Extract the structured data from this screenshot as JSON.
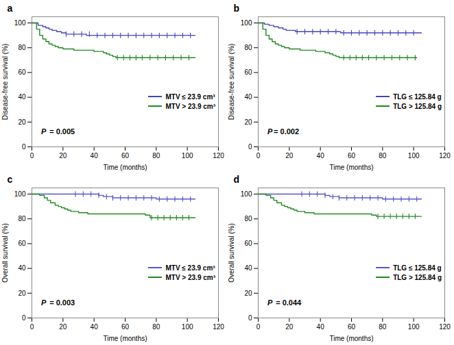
{
  "chart_data": [
    {
      "type": "line",
      "title": "a",
      "xlabel": "Time (months)",
      "ylabel": "Disease-free survival (%)",
      "annotations": [
        "P",
        " = 0.005"
      ],
      "series": [
        {
          "name": "MTV ≤ 23.9 cm³",
          "color": "#4444bb",
          "x": [
            0,
            4,
            7,
            9,
            11,
            13,
            16,
            19,
            22,
            27,
            35,
            40,
            45,
            50,
            55,
            60,
            65,
            70,
            75,
            80,
            85,
            90,
            95,
            100,
            105
          ],
          "values": [
            100,
            98,
            97,
            96,
            95,
            94,
            93,
            92,
            91,
            91,
            90,
            90,
            90,
            90,
            90,
            90,
            90,
            90,
            90,
            90,
            90,
            90,
            90,
            90,
            90
          ],
          "censor_x": [
            22,
            27,
            32,
            37,
            42,
            47,
            52,
            57,
            62,
            67,
            72,
            77,
            82,
            87,
            92,
            97,
            102
          ],
          "censor_y": [
            91,
            91,
            91,
            91,
            90,
            90,
            90,
            90,
            90,
            90,
            90,
            90,
            90,
            90,
            90,
            90,
            90
          ]
        },
        {
          "name": "MTV > 23.9 cm³",
          "color": "#228822",
          "x": [
            0,
            3,
            5,
            7,
            9,
            11,
            13,
            15,
            17,
            20,
            23,
            27,
            32,
            37,
            40,
            43,
            46,
            48,
            50,
            52,
            54,
            60,
            65,
            70,
            75,
            80,
            85,
            90,
            95,
            100,
            105
          ],
          "values": [
            100,
            95,
            90,
            87,
            85,
            83,
            82,
            81,
            80,
            79,
            79,
            78,
            78,
            78,
            77,
            77,
            76,
            75,
            74,
            73,
            72,
            72,
            72,
            72,
            72,
            72,
            72,
            72,
            72,
            72,
            72
          ],
          "censor_x": [
            55,
            59,
            63,
            67,
            71,
            76,
            81,
            86,
            91,
            96,
            101
          ],
          "censor_y": [
            72,
            72,
            72,
            72,
            72,
            72,
            72,
            72,
            72,
            72,
            72
          ]
        }
      ],
      "xlim": [
        0,
        120
      ],
      "ylim": [
        0,
        105
      ],
      "xticks": [
        0,
        20,
        40,
        60,
        80,
        100,
        120
      ],
      "yticks": [
        0,
        20,
        40,
        60,
        80,
        100
      ],
      "legend": "lower right",
      "grid": false
    },
    {
      "type": "line",
      "title": "b",
      "xlabel": "Time (months)",
      "ylabel": "Disease-free survival (%)",
      "annotations": [
        "P",
        "= 0.002"
      ],
      "series": [
        {
          "name": "TLG ≤ 125.84 g",
          "color": "#4444bb",
          "x": [
            0,
            4,
            7,
            10,
            13,
            16,
            18,
            21,
            24,
            28,
            33,
            38,
            43,
            48,
            53,
            60,
            65,
            70,
            75,
            80,
            85,
            90,
            95,
            100,
            105
          ],
          "values": [
            100,
            99,
            98,
            97,
            96,
            95,
            94,
            94,
            93,
            93,
            93,
            93,
            93,
            93,
            92,
            92,
            92,
            92,
            92,
            92,
            92,
            92,
            92,
            92,
            92
          ],
          "censor_x": [
            25,
            30,
            35,
            40,
            45,
            50,
            55,
            60,
            65,
            70,
            75,
            80,
            85,
            90,
            95,
            100
          ],
          "censor_y": [
            93,
            93,
            93,
            93,
            93,
            93,
            92,
            92,
            92,
            92,
            92,
            92,
            92,
            92,
            92,
            92
          ]
        },
        {
          "name": "TLG > 125.84 g",
          "color": "#228822",
          "x": [
            0,
            3,
            5,
            7,
            9,
            11,
            13,
            15,
            17,
            20,
            23,
            27,
            32,
            37,
            40,
            43,
            46,
            48,
            50,
            52,
            58,
            62,
            66,
            70,
            74,
            78,
            82,
            86,
            90,
            94,
            98,
            102
          ],
          "values": [
            100,
            95,
            90,
            87,
            85,
            83,
            82,
            81,
            80,
            79,
            79,
            78,
            78,
            77,
            77,
            76,
            75,
            74,
            73,
            72,
            72,
            72,
            72,
            72,
            72,
            72,
            72,
            72,
            72,
            72,
            72,
            72
          ],
          "censor_x": [
            55,
            59,
            63,
            67,
            71,
            76,
            81,
            86,
            91,
            96,
            101
          ],
          "censor_y": [
            72,
            72,
            72,
            72,
            72,
            72,
            72,
            72,
            72,
            72,
            72
          ]
        }
      ],
      "xlim": [
        0,
        120
      ],
      "ylim": [
        0,
        105
      ],
      "xticks": [
        0,
        20,
        40,
        60,
        80,
        100,
        120
      ],
      "yticks": [
        0,
        20,
        40,
        60,
        80,
        100
      ],
      "legend": "lower right",
      "grid": false
    },
    {
      "type": "line",
      "title": "c",
      "xlabel": "Time (months)",
      "ylabel": "Overall survival (%)",
      "annotations": [
        "P",
        " = 0.003"
      ],
      "series": [
        {
          "name": "MTV ≤ 23.9 cm³",
          "color": "#5555cc",
          "x": [
            0,
            10,
            15,
            20,
            25,
            30,
            35,
            40,
            43,
            46,
            49,
            52,
            55,
            60,
            65,
            70,
            75,
            80,
            85,
            90,
            95,
            100,
            105
          ],
          "values": [
            100,
            100,
            100,
            100,
            100,
            100,
            100,
            100,
            99,
            98,
            98,
            97,
            97,
            97,
            97,
            97,
            97,
            96,
            96,
            96,
            96,
            96,
            96
          ],
          "censor_x": [
            28,
            33,
            38,
            43,
            48,
            52,
            57,
            62,
            67,
            72,
            77,
            82,
            87,
            92,
            97,
            102
          ],
          "censor_y": [
            100,
            100,
            100,
            99,
            98,
            97,
            97,
            97,
            97,
            97,
            97,
            96,
            96,
            96,
            96,
            96
          ]
        },
        {
          "name": "MTV > 23.9 cm³",
          "color": "#228822",
          "x": [
            0,
            5,
            8,
            10,
            12,
            15,
            17,
            19,
            21,
            23,
            25,
            27,
            30,
            33,
            36,
            40,
            45,
            50,
            55,
            60,
            65,
            70,
            73,
            76,
            80,
            85,
            90,
            95,
            100,
            105
          ],
          "values": [
            100,
            99,
            97,
            95,
            93,
            91,
            90,
            89,
            88,
            87,
            86,
            86,
            85,
            85,
            84,
            84,
            84,
            84,
            84,
            84,
            84,
            84,
            83,
            81,
            81,
            81,
            81,
            81,
            81,
            81
          ],
          "censor_x": [
            77,
            81,
            85,
            89,
            93,
            97,
            101
          ],
          "censor_y": [
            81,
            81,
            81,
            81,
            81,
            81,
            81
          ]
        }
      ],
      "xlim": [
        0,
        120
      ],
      "ylim": [
        0,
        105
      ],
      "xticks": [
        0,
        20,
        40,
        60,
        80,
        100,
        120
      ],
      "yticks": [
        0,
        20,
        40,
        60,
        80,
        100
      ],
      "legend": "lower right",
      "grid": false
    },
    {
      "type": "line",
      "title": "d",
      "xlabel": "Time (months)",
      "ylabel": "Overall survival (%)",
      "annotations": [
        "P",
        " = 0.044"
      ],
      "series": [
        {
          "name": "TLG ≤ 125.84 g",
          "color": "#5555cc",
          "x": [
            0,
            5,
            10,
            15,
            20,
            25,
            30,
            35,
            40,
            43,
            46,
            49,
            52,
            55,
            60,
            65,
            70,
            75,
            80,
            85,
            90,
            95,
            100,
            105
          ],
          "values": [
            100,
            100,
            100,
            100,
            100,
            100,
            100,
            100,
            100,
            99,
            98,
            98,
            97,
            97,
            97,
            97,
            97,
            97,
            96,
            96,
            96,
            96,
            96,
            96
          ],
          "censor_x": [
            28,
            33,
            38,
            43,
            48,
            52,
            57,
            62,
            67,
            72,
            77,
            82,
            87,
            92,
            97,
            102
          ],
          "censor_y": [
            100,
            100,
            100,
            99,
            98,
            97,
            97,
            97,
            97,
            97,
            97,
            96,
            96,
            96,
            96,
            96
          ]
        },
        {
          "name": "TLG > 125.84 g",
          "color": "#228822",
          "x": [
            0,
            5,
            8,
            10,
            12,
            15,
            17,
            19,
            21,
            23,
            25,
            27,
            30,
            33,
            36,
            40,
            45,
            50,
            55,
            60,
            65,
            70,
            73,
            76,
            80,
            85,
            90,
            95,
            100,
            105
          ],
          "values": [
            100,
            99,
            97,
            95,
            93,
            91,
            90,
            89,
            88,
            87,
            86,
            86,
            85,
            85,
            84,
            84,
            84,
            84,
            84,
            84,
            84,
            84,
            83,
            82,
            82,
            82,
            82,
            82,
            82,
            82
          ],
          "censor_x": [
            77,
            81,
            85,
            89,
            93,
            97,
            101
          ],
          "censor_y": [
            82,
            82,
            82,
            82,
            82,
            82,
            82
          ]
        }
      ],
      "xlim": [
        0,
        120
      ],
      "ylim": [
        0,
        105
      ],
      "xticks": [
        0,
        20,
        40,
        60,
        80,
        100,
        120
      ],
      "yticks": [
        0,
        20,
        40,
        60,
        80,
        100
      ],
      "legend": "lower right",
      "grid": false
    }
  ]
}
